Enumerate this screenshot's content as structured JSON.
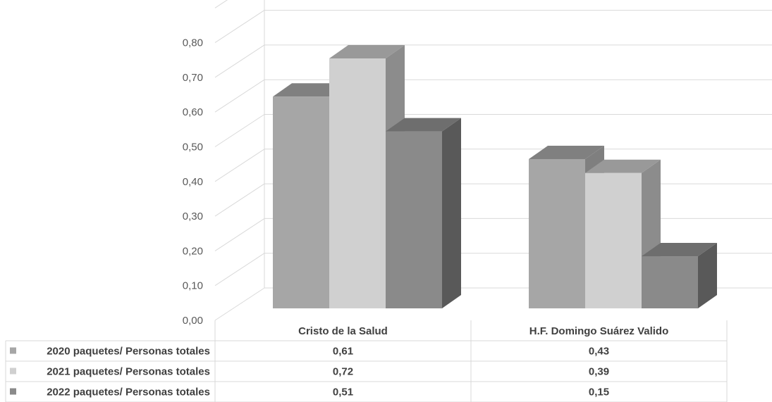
{
  "chart_data": {
    "type": "bar",
    "categories": [
      "Cristo de la Salud",
      "H.F. Domingo Suárez Valido"
    ],
    "series": [
      {
        "name": "2020 paquetes/ Personas totales",
        "values": [
          0.61,
          0.43
        ],
        "color": "#a6a6a6",
        "top": "#808080",
        "side": "#7f7f7f"
      },
      {
        "name": "2021 paquetes/ Personas totales",
        "values": [
          0.72,
          0.39
        ],
        "color": "#d0d0d0",
        "top": "#999999",
        "side": "#8c8c8c"
      },
      {
        "name": "2022 paquetes/ Personas totales",
        "values": [
          0.51,
          0.15
        ],
        "color": "#8a8a8a",
        "top": "#6e6e6e",
        "side": "#595959"
      }
    ],
    "table_values": [
      [
        "0,61",
        "0,43"
      ],
      [
        "0,72",
        "0,39"
      ],
      [
        "0,51",
        "0,15"
      ]
    ],
    "yticks": [
      "0,00",
      "0,10",
      "0,20",
      "0,30",
      "0,40",
      "0,50",
      "0,60",
      "0,70",
      "0,80"
    ],
    "ylim": [
      0,
      0.8
    ],
    "grid": true,
    "legend": "data-table"
  }
}
